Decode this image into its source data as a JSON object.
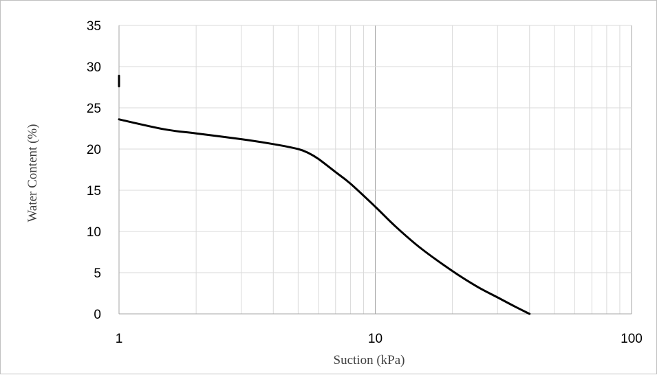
{
  "chart_data": {
    "type": "line",
    "xlabel": "Suction (kPa)",
    "ylabel": "Water Content (%)",
    "xscale": "log",
    "xlim": [
      1,
      100
    ],
    "ylim": [
      0,
      35
    ],
    "x_ticks": [
      1,
      10,
      100
    ],
    "x_tick_labels": [
      "1",
      "10",
      "100"
    ],
    "y_ticks": [
      0,
      5,
      10,
      15,
      20,
      25,
      30,
      35
    ],
    "y_tick_labels": [
      "0",
      "5",
      "10",
      "15",
      "20",
      "25",
      "30",
      "35"
    ],
    "grid": true,
    "legend": "none",
    "line_color": "#000000",
    "grid_color": "#d9d9d9",
    "series": [
      {
        "x": [
          1,
          1.5,
          2,
          3,
          4,
          5,
          5.5,
          6,
          7,
          8,
          10,
          12,
          15,
          20,
          25,
          30,
          35,
          40
        ],
        "y": [
          23.6,
          22.4,
          21.9,
          21.2,
          20.6,
          20.0,
          19.5,
          18.8,
          17.2,
          15.8,
          13.0,
          10.6,
          8.0,
          5.2,
          3.3,
          2.0,
          0.9,
          0
        ]
      },
      {
        "x": [
          1,
          1
        ],
        "y": [
          27.6,
          28.9
        ]
      }
    ]
  }
}
